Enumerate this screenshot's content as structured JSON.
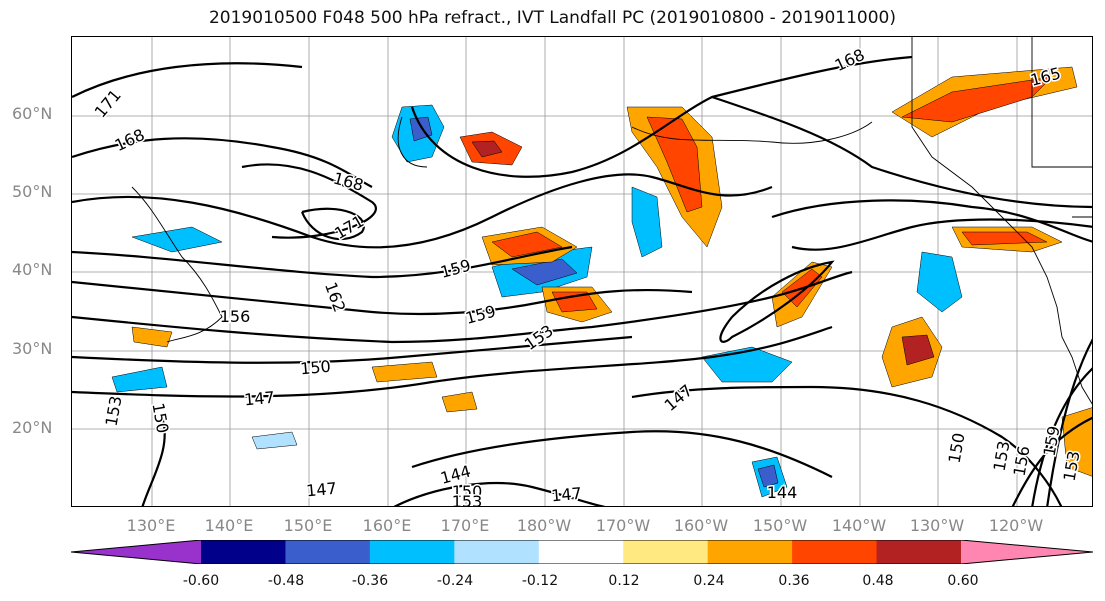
{
  "title": "2019010500 F048 500 hPa refract., IVT Landfall PC (2019010800 - 2019011000)",
  "lat_labels": [
    "60°N",
    "50°N",
    "40°N",
    "30°N",
    "20°N"
  ],
  "lon_labels": [
    "130°E",
    "140°E",
    "150°E",
    "160°E",
    "170°E",
    "180°W",
    "170°W",
    "160°W",
    "150°W",
    "140°W",
    "130°W",
    "120°W"
  ],
  "contour_labels": [
    "171",
    "168",
    "168",
    "171",
    "165",
    "168",
    "159",
    "162",
    "156",
    "159",
    "153",
    "150",
    "147",
    "147",
    "153",
    "150",
    "144",
    "147",
    "150",
    "153",
    "147",
    "144",
    "150",
    "153",
    "156",
    "159",
    "153"
  ],
  "colorbar": {
    "ticks": [
      "-0.60",
      "-0.48",
      "-0.36",
      "-0.24",
      "-0.12",
      "0.12",
      "0.24",
      "0.36",
      "0.48",
      "0.60"
    ],
    "colors": [
      "#9932CC",
      "#00008B",
      "#3A5FCD",
      "#00BFFF",
      "#B0E2FF",
      "#FFFFFF",
      "#FFE980",
      "#FFA500",
      "#FF4500",
      "#B22222",
      "#FF86B0"
    ]
  }
}
